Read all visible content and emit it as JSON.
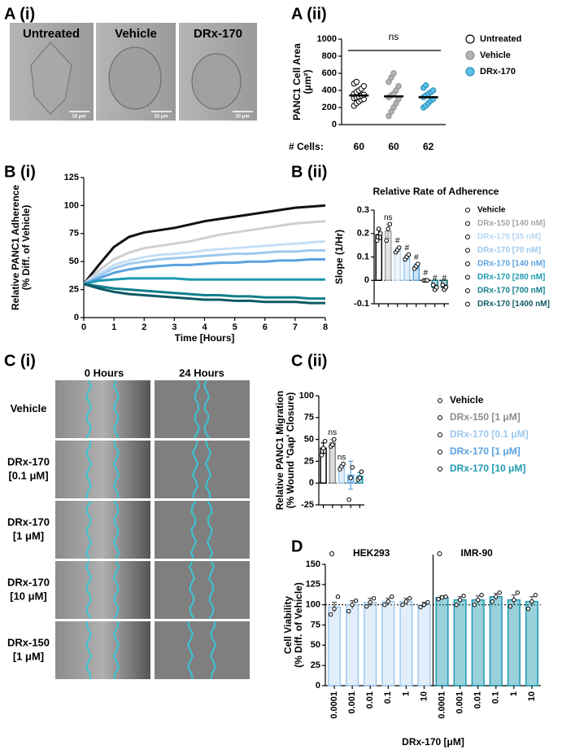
{
  "panels": {
    "labels": [
      "A (i)",
      "A (ii)",
      "B (i)",
      "B (ii)",
      "C (i)",
      "C (ii)",
      "D"
    ],
    "a_i": {
      "columns": [
        "Untreated",
        "Vehicle",
        "DRx-170"
      ],
      "scale_bar": "10 μm"
    },
    "c_i": {
      "columns": [
        "0 Hours",
        "24 Hours"
      ],
      "rows": [
        [
          "Vehicle"
        ],
        [
          "DRx-170",
          "[0.1 μM]"
        ],
        [
          "DRx-170",
          "[1 μM]"
        ],
        [
          "DRx-170",
          "[10 μM]"
        ],
        [
          "DRx-150",
          "[1 μM]"
        ]
      ]
    }
  },
  "chart_data": [
    {
      "type": "dotplot",
      "ylabel": [
        "PANC1 Cell Area",
        "(μm²)"
      ],
      "ylim": [
        0,
        1000
      ],
      "yticks": [
        0,
        200,
        400,
        600,
        800,
        1000
      ],
      "annotation": "ns",
      "count_label": "# Cells:",
      "legend": "right",
      "series": [
        {
          "name": "Untreated",
          "color": "#ffffff",
          "edgecolor": "#000000",
          "count": 60,
          "mean": 340,
          "points": [
            220,
            250,
            270,
            290,
            300,
            310,
            320,
            330,
            340,
            350,
            360,
            380,
            400,
            420,
            450,
            480,
            500
          ]
        },
        {
          "name": "Vehicle",
          "color": "#b3b3b3",
          "edgecolor": "#8c8c8c",
          "count": 60,
          "mean": 330,
          "points": [
            100,
            150,
            200,
            250,
            300,
            320,
            340,
            360,
            400,
            450,
            500,
            550,
            600
          ]
        },
        {
          "name": "DRx-170",
          "color": "#5bc0e8",
          "edgecolor": "#2a8fb8",
          "count": 62,
          "mean": 320,
          "points": [
            200,
            220,
            250,
            280,
            300,
            320,
            340,
            360,
            380,
            400,
            430,
            460
          ]
        }
      ]
    },
    {
      "type": "line",
      "xlabel": "Time [Hours]",
      "ylabel": [
        "Relative PANC1 Adherence",
        "(% Diff. of Vehicle)"
      ],
      "x": [
        0,
        0.5,
        1,
        1.5,
        2,
        2.5,
        3,
        3.5,
        4,
        4.5,
        5,
        5.5,
        6,
        6.5,
        7,
        7.5,
        8
      ],
      "xlim": [
        0,
        8
      ],
      "xticks": [
        0,
        1,
        2,
        3,
        4,
        5,
        6,
        7,
        8
      ],
      "ylim": [
        0,
        125
      ],
      "yticks": [
        0,
        25,
        50,
        75,
        100,
        125
      ],
      "series": [
        {
          "color": "#111111",
          "values": [
            30,
            47,
            63,
            72,
            76,
            78,
            80,
            83,
            86,
            88,
            90,
            92,
            94,
            96,
            98,
            99,
            100
          ]
        },
        {
          "color": "#cfcfcf",
          "values": [
            30,
            42,
            52,
            58,
            62,
            64,
            66,
            68,
            71,
            74,
            76,
            78,
            80,
            82,
            84,
            85,
            86
          ]
        },
        {
          "color": "#c5dff5",
          "values": [
            30,
            39,
            47,
            51,
            54,
            56,
            57,
            58,
            60,
            61,
            62,
            63,
            64,
            65,
            66,
            67,
            68
          ]
        },
        {
          "color": "#9ec9ef",
          "values": [
            30,
            37,
            44,
            48,
            50,
            52,
            53,
            54,
            55,
            56,
            57,
            57,
            58,
            59,
            59,
            60,
            60
          ]
        },
        {
          "color": "#5aa2e0",
          "values": [
            30,
            35,
            40,
            43,
            45,
            46,
            47,
            47,
            48,
            49,
            49,
            50,
            50,
            51,
            51,
            52,
            52
          ]
        },
        {
          "color": "#1c9ab0",
          "values": [
            30,
            33,
            34,
            35,
            35,
            35,
            35,
            34,
            34,
            34,
            34,
            34,
            34,
            34,
            34,
            34,
            34
          ]
        },
        {
          "color": "#117f8c",
          "values": [
            30,
            28,
            26,
            25,
            24,
            23,
            22,
            21,
            20,
            20,
            19,
            19,
            18,
            18,
            18,
            17,
            17
          ]
        },
        {
          "color": "#0d5a66",
          "values": [
            30,
            26,
            23,
            21,
            20,
            19,
            18,
            17,
            16,
            16,
            15,
            15,
            14,
            14,
            14,
            13,
            13
          ]
        }
      ]
    },
    {
      "type": "bar",
      "title": "Relative Rate of Adherence",
      "ylabel": [
        "Slope (1/Hr)"
      ],
      "ylim": [
        -0.1,
        0.3
      ],
      "yticks": [
        -0.1,
        0,
        0.1,
        0.2,
        0.3
      ],
      "legend": "right",
      "categories": [
        "Vehicle",
        "DRx-150 [140 nM]",
        "DRx-170 [35 nM]",
        "DRx-170 [70 nM]",
        "DRx-170 [140 nM]",
        "DRx-170 [280 nM]",
        "DRx-170 [700 nM]",
        "DRx-170 [1400 nM]"
      ],
      "colors": [
        "#000000",
        "#a6a6a6",
        "#c5dff5",
        "#9ec9ef",
        "#5aa2e0",
        "#1c9ab0",
        "#117f8c",
        "#0d5a66"
      ],
      "values": [
        0.195,
        0.21,
        0.13,
        0.1,
        0.06,
        0.0,
        -0.03,
        -0.03
      ],
      "errors": [
        0.02,
        0.03,
        0.01,
        0.01,
        0.01,
        0.003,
        0.01,
        0.01
      ],
      "points": [
        [
          0.17,
          0.22,
          0.2
        ],
        [
          0.17,
          0.22,
          0.24
        ],
        [
          0.12,
          0.13,
          0.14
        ],
        [
          0.09,
          0.1,
          0.11
        ],
        [
          0.05,
          0.06,
          0.07
        ],
        [
          0,
          0,
          0
        ],
        [
          -0.02,
          -0.04,
          -0.03
        ],
        [
          -0.02,
          -0.04,
          -0.03
        ]
      ],
      "annotations": [
        null,
        "ns",
        "#",
        "#",
        "#",
        "#",
        "#",
        "#"
      ]
    },
    {
      "type": "bar",
      "ylabel": [
        "Relative PANC1 Migration",
        "(% Wound 'Gap' Closure)"
      ],
      "ylim": [
        -25,
        100
      ],
      "yticks": [
        -25,
        0,
        25,
        50,
        75,
        100
      ],
      "legend": "right",
      "categories": [
        "Vehicle",
        "DRx-150 [1 μM]",
        "DRx-170 [0.1 μM]",
        "DRx-170 [1 μM]",
        "DRx-170 [10 μM]"
      ],
      "colors": [
        "#000000",
        "#8c8c8c",
        "#9ec9ef",
        "#5aa2e0",
        "#1c9ab0"
      ],
      "values": [
        40,
        46,
        19,
        9,
        8
      ],
      "errors": [
        6,
        4,
        2,
        16,
        4
      ],
      "points": [
        [
          32,
          40,
          48
        ],
        [
          42,
          44,
          50
        ],
        [
          16,
          19,
          22
        ],
        [
          -19,
          6,
          18
        ],
        [
          4,
          6,
          13
        ]
      ],
      "annotations": [
        null,
        "ns",
        "ns",
        null,
        null
      ]
    },
    {
      "type": "groupbar",
      "ylabel": [
        "Cell Viability",
        "(% Diff. of Vehicle)"
      ],
      "xlabel": "DRx-170 [μM]",
      "ylim": [
        0,
        150
      ],
      "yticks": [
        0,
        25,
        50,
        75,
        100,
        125,
        150
      ],
      "reference_line": 100,
      "legend": "top",
      "categories": [
        "0.0001",
        "0.001",
        "0.01",
        "0.1",
        "1",
        "10"
      ],
      "series": [
        {
          "name": "HEK293",
          "color": "#9ec9ef",
          "values": [
            97,
            100,
            103,
            104,
            104,
            100
          ],
          "errors": [
            6,
            5,
            5,
            4,
            4,
            3
          ],
          "points": [
            [
              88,
              95,
              110
            ],
            [
              92,
              100,
              105
            ],
            [
              98,
              103,
              108
            ],
            [
              100,
              104,
              110
            ],
            [
              100,
              104,
              108
            ],
            [
              97,
              100,
              103
            ]
          ]
        },
        {
          "name": "IMR-90",
          "color": "#1c9ab0",
          "values": [
            109,
            106,
            106,
            110,
            106,
            104
          ],
          "errors": [
            2,
            4,
            5,
            4,
            6,
            6
          ],
          "points": [
            [
              107,
              109,
              110
            ],
            [
              100,
              106,
              111
            ],
            [
              100,
              106,
              112
            ],
            [
              104,
              110,
              115
            ],
            [
              98,
              106,
              115
            ],
            [
              95,
              104,
              112
            ]
          ]
        }
      ]
    }
  ]
}
